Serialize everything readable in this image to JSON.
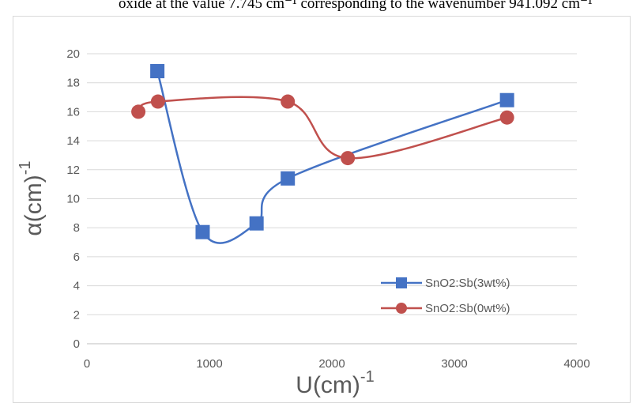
{
  "caption": {
    "text": "oxide at the value 7.745 cm⁻¹ corresponding to the wavenumber 941.092 cm⁻¹"
  },
  "chart_data": {
    "type": "line",
    "smooth": true,
    "title": "",
    "xlabel": "U(cm)",
    "xlabel_sup": "-1",
    "ylabel": "α(cm)",
    "ylabel_sup": "-1",
    "xlim": [
      0,
      4000
    ],
    "ylim": [
      0,
      20
    ],
    "xticks": [
      "0",
      "1000",
      "2000",
      "3000",
      "4000"
    ],
    "yticks": [
      "0",
      "2",
      "4",
      "6",
      "8",
      "10",
      "12",
      "14",
      "16",
      "18",
      "20"
    ],
    "grid": "horizontal",
    "legend_position": "bottom-right",
    "series": [
      {
        "name": "SnO2:Sb(3wt%)",
        "marker": "square",
        "color": "#4472c4",
        "x": [
          575,
          945,
          1385,
          1640,
          3430
        ],
        "y": [
          18.8,
          7.7,
          8.3,
          11.4,
          16.8
        ]
      },
      {
        "name": "SnO2:Sb(0wt%)",
        "marker": "circle",
        "color": "#c0504d",
        "x": [
          420,
          580,
          1640,
          2130,
          3430
        ],
        "y": [
          16.0,
          16.7,
          16.7,
          12.8,
          15.6
        ]
      }
    ]
  }
}
